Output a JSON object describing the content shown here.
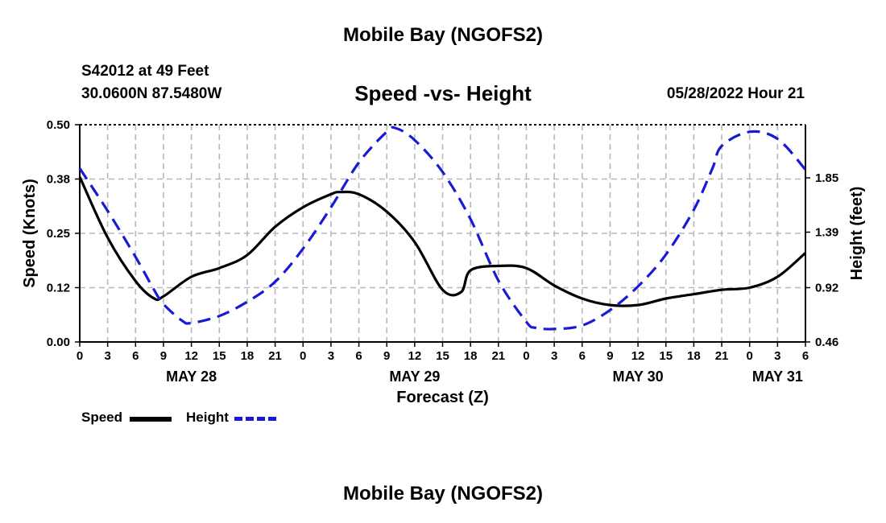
{
  "page": {
    "top_title": "Mobile Bay (NGOFS2)",
    "bottom_title": "Mobile Bay (NGOFS2)",
    "station": "S42012 at 49 Feet",
    "coords": "30.0600N  87.5480W",
    "run_time": "05/28/2022 Hour 21"
  },
  "legend": {
    "speed": "Speed",
    "height": "Height"
  },
  "colors": {
    "speed": "#000000",
    "height": "#1a1ad6",
    "grid": "#b8b8b8"
  },
  "chart_data": {
    "type": "line",
    "title": "Speed -vs- Height",
    "xlabel": "Forecast (Z)",
    "ylabel": "Speed (Knots)",
    "y2label": "Height (feet)",
    "xlim": [
      0,
      78
    ],
    "ylim": [
      0.0,
      0.5
    ],
    "y2lim": [
      0.46,
      2.3
    ],
    "yticks": [
      "0.00",
      "0.12",
      "0.25",
      "0.38",
      "0.50"
    ],
    "ytick_values": [
      0.0,
      0.125,
      0.25,
      0.375,
      0.5
    ],
    "y2ticks": [
      "0.46",
      "0.92",
      "1.39",
      "1.85"
    ],
    "y2tick_values": [
      0.46,
      0.92,
      1.39,
      1.85
    ],
    "xtick_labels": [
      "0",
      "3",
      "6",
      "9",
      "12",
      "15",
      "18",
      "21",
      "0",
      "3",
      "6",
      "9",
      "12",
      "15",
      "18",
      "21",
      "0",
      "3",
      "6",
      "9",
      "12",
      "15",
      "18",
      "21",
      "0",
      "3",
      "6"
    ],
    "date_labels": [
      {
        "text": "MAY 28",
        "x": 12
      },
      {
        "text": "MAY 29",
        "x": 36
      },
      {
        "text": "MAY 30",
        "x": 60
      },
      {
        "text": "MAY 31",
        "x": 75
      }
    ],
    "series": [
      {
        "name": "Speed",
        "axis": "left",
        "x": [
          0,
          3,
          6,
          8,
          9,
          12,
          15,
          18,
          21,
          24,
          27,
          28,
          30,
          33,
          36,
          39,
          41,
          42,
          45,
          48,
          51,
          54,
          57,
          60,
          63,
          66,
          69,
          72,
          75,
          78
        ],
        "values": [
          0.38,
          0.24,
          0.14,
          0.1,
          0.105,
          0.15,
          0.17,
          0.2,
          0.265,
          0.31,
          0.34,
          0.345,
          0.34,
          0.3,
          0.23,
          0.12,
          0.115,
          0.165,
          0.175,
          0.17,
          0.13,
          0.1,
          0.085,
          0.085,
          0.1,
          0.11,
          0.12,
          0.125,
          0.15,
          0.205
        ]
      },
      {
        "name": "Height",
        "axis": "right",
        "x": [
          0,
          3,
          6,
          8,
          9,
          11,
          12,
          15,
          18,
          21,
          24,
          27,
          30,
          33,
          34,
          36,
          39,
          42,
          45,
          48,
          49,
          51,
          54,
          57,
          60,
          63,
          66,
          68,
          69,
          72,
          75,
          78
        ],
        "values": [
          1.93,
          1.57,
          1.18,
          0.9,
          0.78,
          0.64,
          0.62,
          0.68,
          0.8,
          0.97,
          1.25,
          1.6,
          1.98,
          2.24,
          2.27,
          2.17,
          1.9,
          1.5,
          0.98,
          0.63,
          0.58,
          0.57,
          0.6,
          0.73,
          0.93,
          1.2,
          1.58,
          1.93,
          2.12,
          2.24,
          2.18,
          1.92
        ]
      }
    ]
  }
}
